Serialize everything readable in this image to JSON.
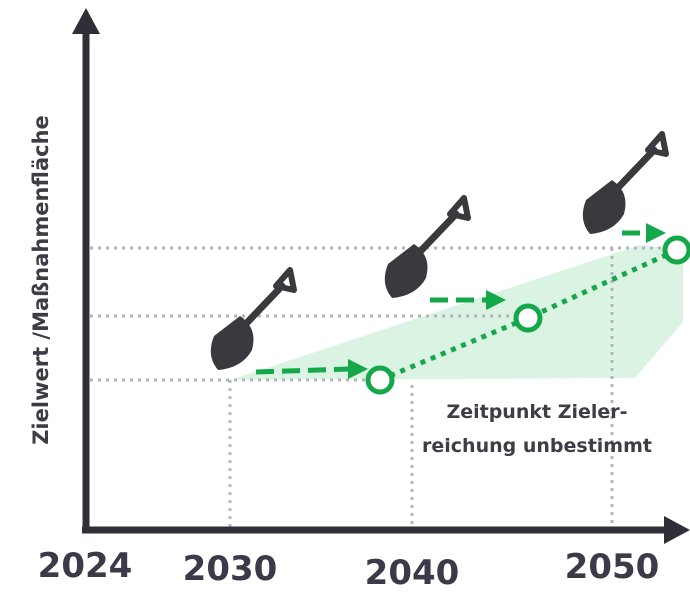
{
  "y_axis_label": "Zielwert /Maßnahmenfläche",
  "x_labels": [
    "2024",
    "2030",
    "2040",
    "2050"
  ],
  "annotation": [
    "Zeitpunkt Zieler-",
    "reichung unbestimmt"
  ]
}
